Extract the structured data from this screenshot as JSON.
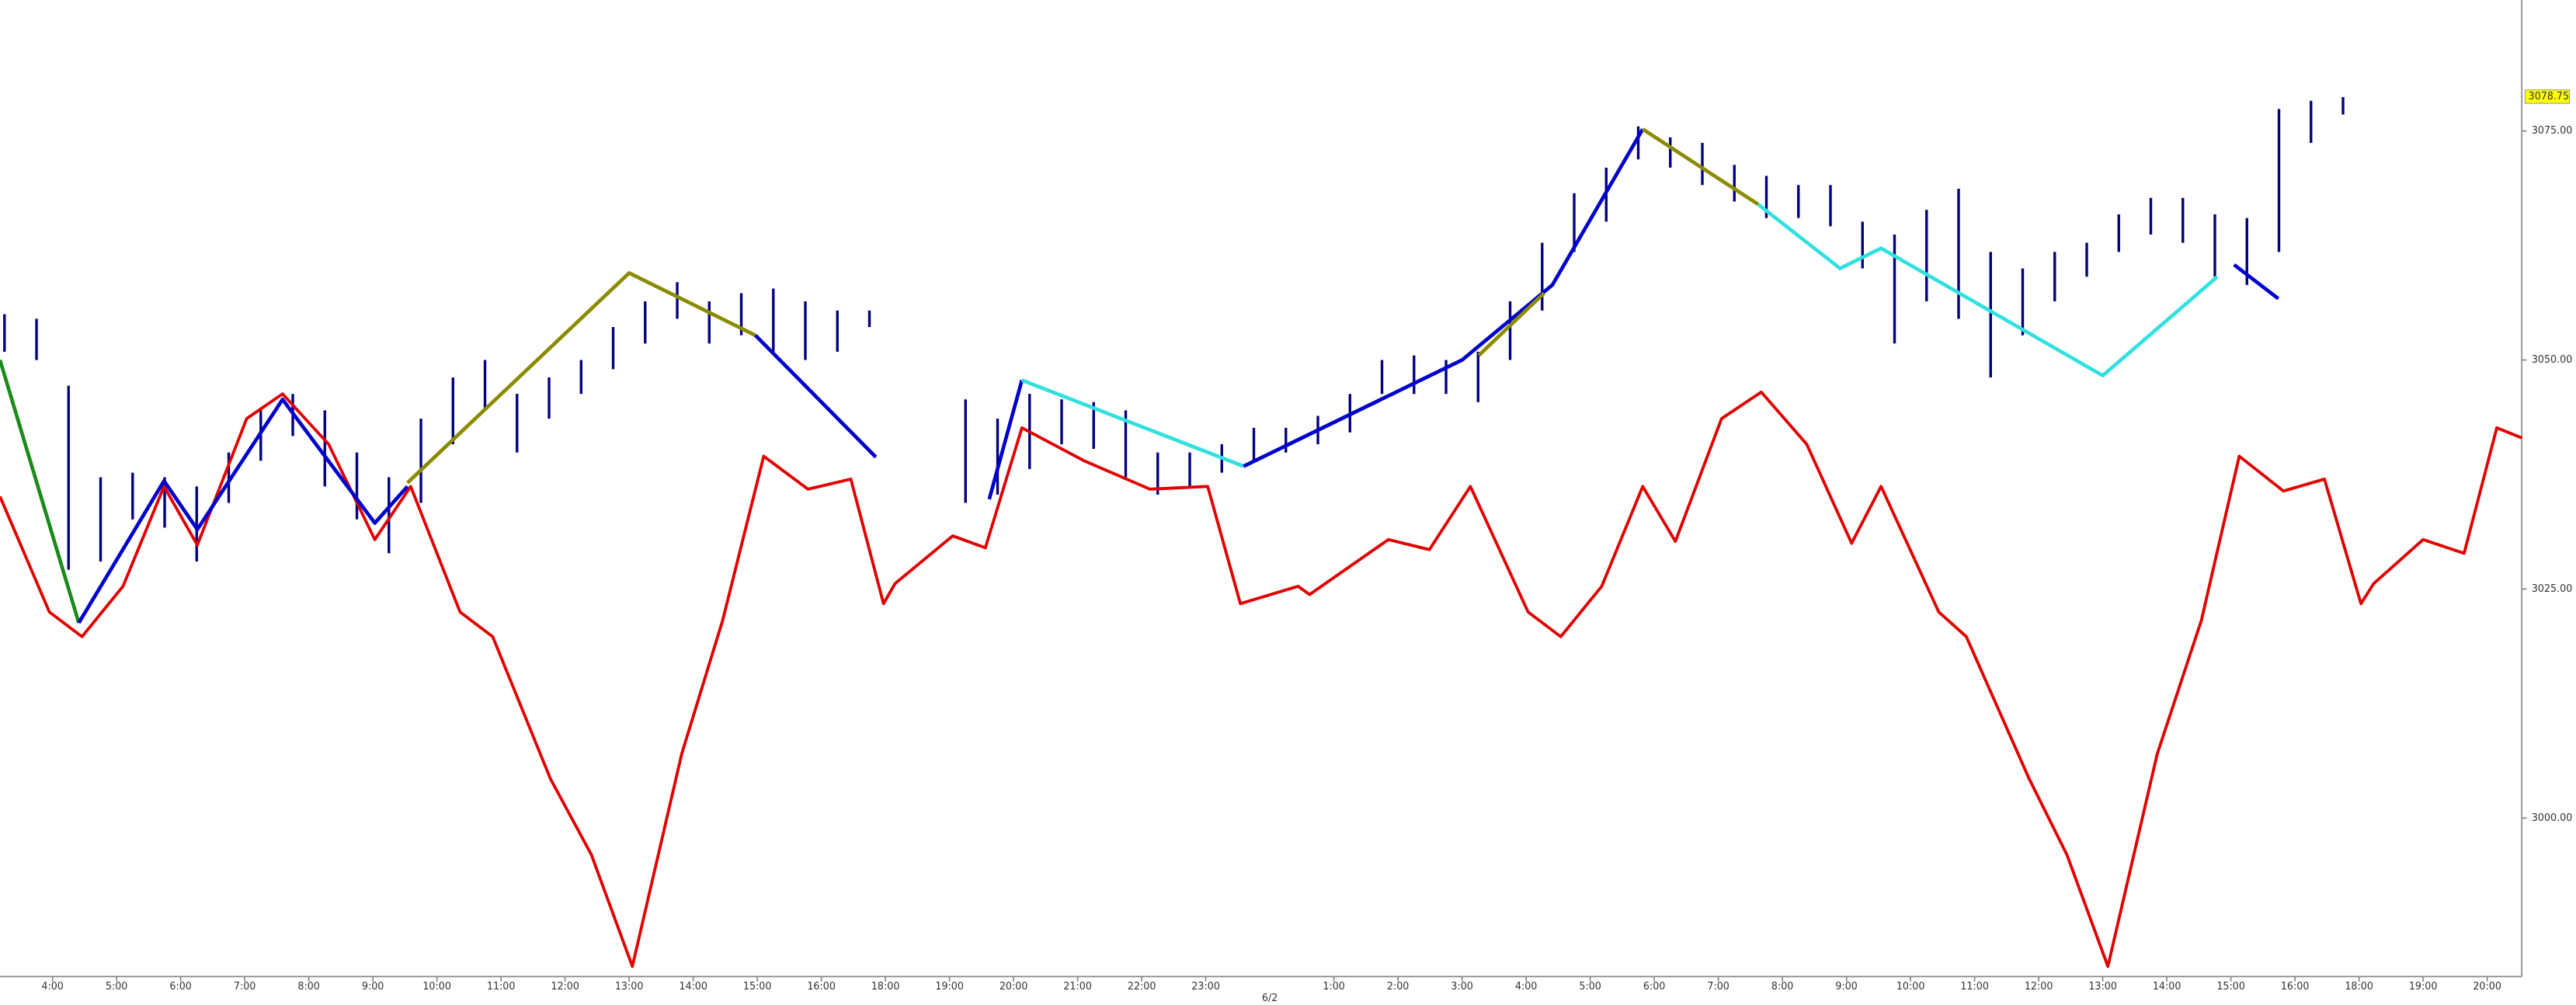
{
  "chart_data": {
    "type": "line",
    "xlim": [
      3.18,
      44.54
    ],
    "xbreaks": [
      [
        17,
        18
      ],
      [
        41,
        42
      ]
    ],
    "ylim": [
      2982.7,
      3089.3
    ],
    "xticks": [
      {
        "value": 4,
        "label": "4:00"
      },
      {
        "value": 5,
        "label": "5:00"
      },
      {
        "value": 6,
        "label": "6:00"
      },
      {
        "value": 7,
        "label": "7:00"
      },
      {
        "value": 8,
        "label": "8:00"
      },
      {
        "value": 9,
        "label": "9:00"
      },
      {
        "value": 10,
        "label": "10:00"
      },
      {
        "value": 11,
        "label": "11:00"
      },
      {
        "value": 12,
        "label": "12:00"
      },
      {
        "value": 13,
        "label": "13:00"
      },
      {
        "value": 14,
        "label": "14:00"
      },
      {
        "value": 15,
        "label": "15:00"
      },
      {
        "value": 16,
        "label": "16:00"
      },
      {
        "value": 18,
        "label": "18:00"
      },
      {
        "value": 19,
        "label": "19:00"
      },
      {
        "value": 20,
        "label": "20:00"
      },
      {
        "value": 21,
        "label": "21:00"
      },
      {
        "value": 22,
        "label": "22:00"
      },
      {
        "value": 23,
        "label": "23:00"
      },
      {
        "value": 25,
        "label": "1:00"
      },
      {
        "value": 26,
        "label": "2:00"
      },
      {
        "value": 27,
        "label": "3:00"
      },
      {
        "value": 28,
        "label": "4:00"
      },
      {
        "value": 29,
        "label": "5:00"
      },
      {
        "value": 30,
        "label": "6:00"
      },
      {
        "value": 31,
        "label": "7:00"
      },
      {
        "value": 32,
        "label": "8:00"
      },
      {
        "value": 33,
        "label": "9:00"
      },
      {
        "value": 34,
        "label": "10:00"
      },
      {
        "value": 35,
        "label": "11:00"
      },
      {
        "value": 36,
        "label": "12:00"
      },
      {
        "value": 37,
        "label": "13:00"
      },
      {
        "value": 38,
        "label": "14:00"
      },
      {
        "value": 39,
        "label": "15:00"
      },
      {
        "value": 40,
        "label": "16:00"
      },
      {
        "value": 42,
        "label": "18:00"
      },
      {
        "value": 43,
        "label": "19:00"
      },
      {
        "value": 44,
        "label": "20:00"
      }
    ],
    "xdate_ticks": [
      {
        "value": 24,
        "label": "6/2"
      }
    ],
    "yticks": [
      {
        "value": 3000,
        "label": "3000.00"
      },
      {
        "value": 3025,
        "label": "3025.00"
      },
      {
        "value": 3050,
        "label": "3050.00"
      },
      {
        "value": 3075,
        "label": "3075.00"
      }
    ],
    "last_price": 3078.75,
    "last_price_color": "#ffff00",
    "bars": {
      "color": "#000080",
      "x": [
        3.25,
        3.75,
        4.25,
        4.75,
        5.25,
        5.75,
        6.25,
        6.75,
        7.25,
        7.75,
        8.25,
        8.75,
        9.25,
        9.75,
        10.25,
        10.75,
        11.25,
        11.75,
        12.25,
        12.75,
        13.25,
        13.75,
        14.25,
        14.75,
        15.25,
        15.75,
        16.25,
        16.75,
        19.25,
        19.75,
        20.25,
        20.75,
        21.25,
        21.75,
        22.25,
        22.75,
        23.25,
        23.75,
        24.25,
        24.75,
        25.25,
        25.75,
        26.25,
        26.75,
        27.25,
        27.75,
        28.25,
        28.75,
        29.25,
        29.75,
        30.25,
        30.75,
        31.25,
        31.75,
        32.25,
        32.75,
        33.25,
        33.75,
        34.25,
        34.75,
        35.25,
        35.75,
        36.25,
        36.75,
        37.25,
        37.75,
        38.25,
        38.75,
        39.25,
        39.75,
        40.25,
        40.75
      ],
      "high": [
        3055.0,
        3054.5,
        3047.2,
        3037.2,
        3037.7,
        3037.2,
        3036.2,
        3039.9,
        3044.5,
        3046.3,
        3044.5,
        3039.9,
        3037.2,
        3043.6,
        3048.1,
        3050.0,
        3046.3,
        3048.1,
        3050.0,
        3053.6,
        3056.4,
        3058.5,
        3056.4,
        3057.3,
        3057.8,
        3056.4,
        3055.4,
        3055.4,
        3045.7,
        3043.6,
        3046.3,
        3045.7,
        3045.4,
        3044.5,
        3039.9,
        3039.9,
        3040.8,
        3042.6,
        3042.6,
        3043.9,
        3046.3,
        3050.0,
        3050.5,
        3050.0,
        3050.9,
        3056.4,
        3062.8,
        3068.2,
        3071.0,
        3075.5,
        3074.3,
        3073.7,
        3071.3,
        3070.1,
        3069.1,
        3069.1,
        3065.1,
        3063.7,
        3066.4,
        3068.7,
        3061.8,
        3060.0,
        3061.8,
        3062.8,
        3065.9,
        3067.7,
        3067.7,
        3065.9,
        3065.5,
        3077.4,
        3078.3,
        3078.7
      ],
      "low": [
        3050.9,
        3050.0,
        3027.1,
        3028.0,
        3032.6,
        3031.7,
        3028.0,
        3034.4,
        3039.0,
        3041.7,
        3036.2,
        3032.6,
        3028.9,
        3034.4,
        3040.8,
        3044.5,
        3039.9,
        3043.6,
        3046.3,
        3049.0,
        3051.8,
        3054.5,
        3051.8,
        3052.7,
        3050.9,
        3050.0,
        3050.9,
        3053.6,
        3034.4,
        3035.3,
        3038.1,
        3040.8,
        3040.3,
        3037.2,
        3035.3,
        3036.2,
        3037.7,
        3039.0,
        3039.9,
        3040.8,
        3042.1,
        3046.3,
        3046.3,
        3046.3,
        3045.4,
        3050.0,
        3055.4,
        3061.8,
        3065.1,
        3071.9,
        3071.0,
        3069.1,
        3067.3,
        3065.5,
        3065.5,
        3064.6,
        3060.0,
        3051.8,
        3056.4,
        3054.5,
        3048.1,
        3052.7,
        3056.4,
        3059.1,
        3061.8,
        3063.7,
        3062.8,
        3059.1,
        3058.2,
        3061.8,
        3073.7,
        3076.8
      ]
    },
    "series": [
      {
        "color": "#e00000",
        "x": [
          3.18,
          3.95,
          4.46,
          5.1,
          5.74,
          6.26,
          7.03,
          7.59,
          8.31,
          9.03,
          9.59,
          10.36,
          10.87,
          11.77,
          12.41,
          13.05,
          13.82,
          14.46,
          15.1,
          15.79,
          16.46,
          16.97,
          18.15,
          19.05,
          19.56,
          20.13,
          21.1,
          22.13,
          23.03,
          23.54,
          24.44,
          24.62,
          25.85,
          26.49,
          27.13,
          28.03,
          28.54,
          29.18,
          29.82,
          30.33,
          31.05,
          31.67,
          32.38,
          33.08,
          33.54,
          34.44,
          34.87,
          35.85,
          36.44,
          37.08,
          37.85,
          38.54,
          39.13,
          39.82,
          40.46,
          42.03,
          42.23,
          43.0,
          43.64,
          44.15,
          44.54
        ],
        "values": [
          3035.1,
          3022.5,
          3019.8,
          3025.3,
          3036.2,
          3029.8,
          3043.6,
          3046.3,
          3040.8,
          3030.4,
          3036.2,
          3022.5,
          3019.8,
          3004.3,
          2996.0,
          2983.8,
          3007.0,
          3021.6,
          3039.5,
          3035.9,
          3037.0,
          3023.4,
          3025.6,
          3030.8,
          3029.5,
          3042.6,
          3039.0,
          3035.9,
          3036.2,
          3023.4,
          3025.3,
          3024.4,
          3030.4,
          3029.3,
          3036.2,
          3022.5,
          3019.8,
          3025.3,
          3036.2,
          3030.2,
          3043.6,
          3046.5,
          3040.8,
          3030.0,
          3036.2,
          3022.5,
          3019.8,
          3004.3,
          2996.0,
          2983.8,
          3007.0,
          3021.6,
          3039.5,
          3035.7,
          3037.0,
          3023.4,
          3025.6,
          3030.4,
          3028.9,
          3042.6,
          3041.5
        ]
      },
      {
        "color": "#1a8a1a",
        "x": [
          3.18,
          4.41
        ],
        "values": [
          3050.0,
          3021.3
        ]
      },
      {
        "color": "#0000cc",
        "x": [
          4.41,
          5.74,
          6.26,
          7.59,
          9.03,
          9.54
        ],
        "values": [
          3021.3,
          3036.8,
          3031.5,
          3045.7,
          3032.2,
          3036.2
        ]
      },
      {
        "color": "#8b8b00",
        "x": [
          9.54,
          13.0,
          14.97
        ],
        "values": [
          3036.6,
          3059.5,
          3052.7
        ]
      },
      {
        "color": "#0000cc",
        "x": [
          14.97,
          16.85
        ],
        "values": [
          3052.7,
          3039.4
        ]
      },
      {
        "color": "#0000cc",
        "x": [
          19.62,
          20.13
        ],
        "values": [
          3034.8,
          3047.8
        ]
      },
      {
        "color": "#33e0e0",
        "x": [
          20.13,
          23.59
        ],
        "values": [
          3047.8,
          3038.4
        ]
      },
      {
        "color": "#0000cc",
        "x": [
          23.59,
          27.0,
          28.41,
          29.82
        ],
        "values": [
          3038.4,
          3050.0,
          3058.2,
          3075.2
        ]
      },
      {
        "color": "#8b8b00",
        "x": [
          27.26,
          28.28
        ],
        "values": [
          3050.5,
          3057.3
        ]
      },
      {
        "color": "#8b8b00",
        "x": [
          29.82,
          31.62
        ],
        "values": [
          3075.2,
          3067.0
        ]
      },
      {
        "color": "#33e0e0",
        "x": [
          31.62,
          32.9,
          33.54,
          37.0,
          38.79
        ],
        "values": [
          3067.0,
          3060.0,
          3062.2,
          3048.3,
          3059.1
        ]
      },
      {
        "color": "#0000cc",
        "x": [
          39.05,
          39.74
        ],
        "values": [
          3060.4,
          3056.7
        ]
      }
    ]
  }
}
